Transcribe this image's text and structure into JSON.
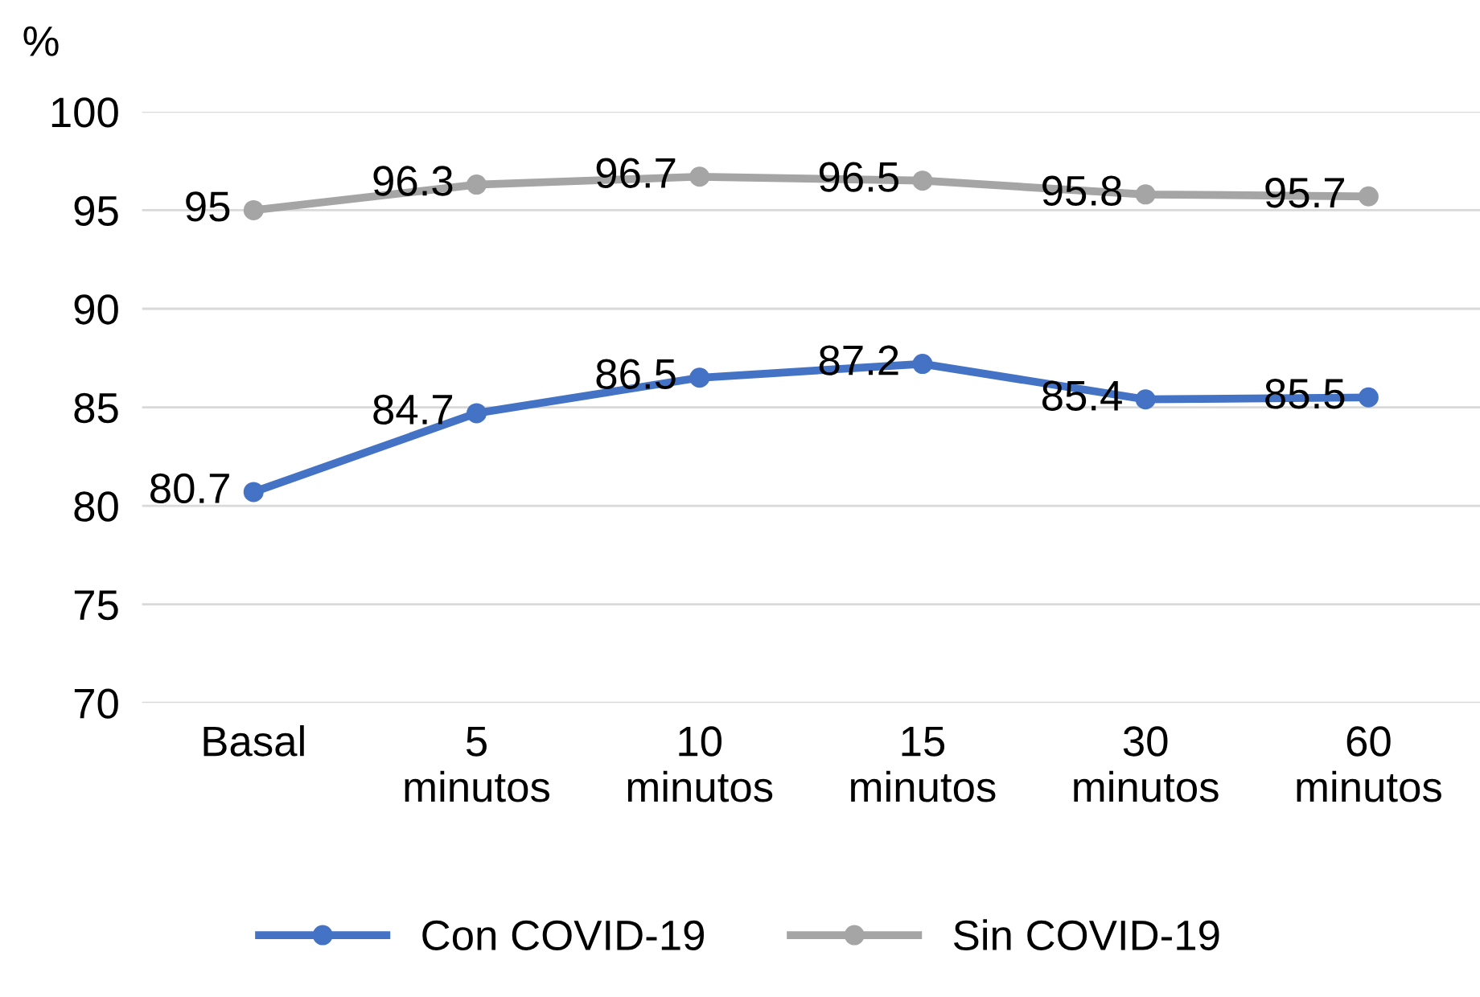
{
  "chart_data": {
    "type": "line",
    "ylabel": "%",
    "categories": [
      "Basal",
      "5\nminutos",
      "10\nminutos",
      "15\nminutos",
      "30\nminutos",
      "60\nminutos"
    ],
    "series": [
      {
        "name": "Con COVID-19",
        "color": "#4472c4",
        "values": [
          80.7,
          84.7,
          86.5,
          87.2,
          85.4,
          85.5
        ]
      },
      {
        "name": "Sin COVID-19",
        "color": "#a5a5a5",
        "values": [
          95,
          96.3,
          96.7,
          96.5,
          95.8,
          95.7
        ]
      }
    ],
    "ylim": [
      70,
      100
    ],
    "yticks": [
      70,
      75,
      80,
      85,
      90,
      95,
      100
    ],
    "grid": "y",
    "legend": "bottom",
    "marker": "circle",
    "line_style": "solid",
    "data_labels": true
  }
}
